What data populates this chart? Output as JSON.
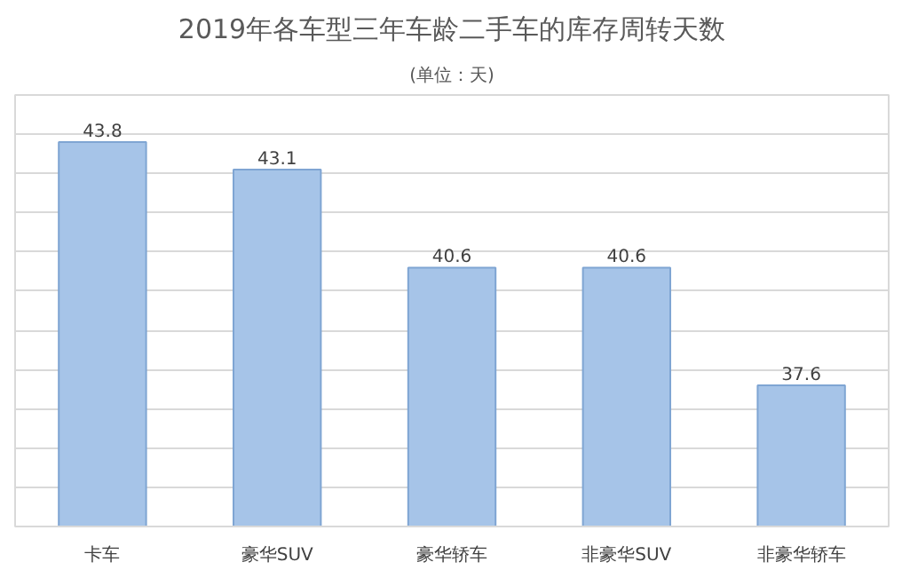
{
  "chart_data": {
    "type": "bar",
    "title": "2019年各车型三年车龄二手车的库存周转天数",
    "subtitle": "(单位：天)",
    "categories": [
      "卡车",
      "豪华SUV",
      "豪华轿车",
      "非豪华SUV",
      "非豪华轿车"
    ],
    "values": [
      43.8,
      43.1,
      40.6,
      40.6,
      37.6
    ],
    "color": "#a6c4e8",
    "ylim": [
      34,
      45
    ],
    "yticks": [
      {
        "value": 34,
        "label": null
      },
      {
        "value": 35,
        "label": null
      },
      {
        "value": 36,
        "label": null
      },
      {
        "value": 37,
        "label": null
      },
      {
        "value": 38,
        "label": null
      },
      {
        "value": 39,
        "label": null
      },
      {
        "value": 40,
        "label": null
      },
      {
        "value": 41,
        "label": null
      },
      {
        "value": 42,
        "label": null
      },
      {
        "value": 43,
        "label": null
      },
      {
        "value": 44,
        "label": null
      }
    ],
    "tick_labels": "x",
    "grid": "y",
    "data_labels": true
  }
}
